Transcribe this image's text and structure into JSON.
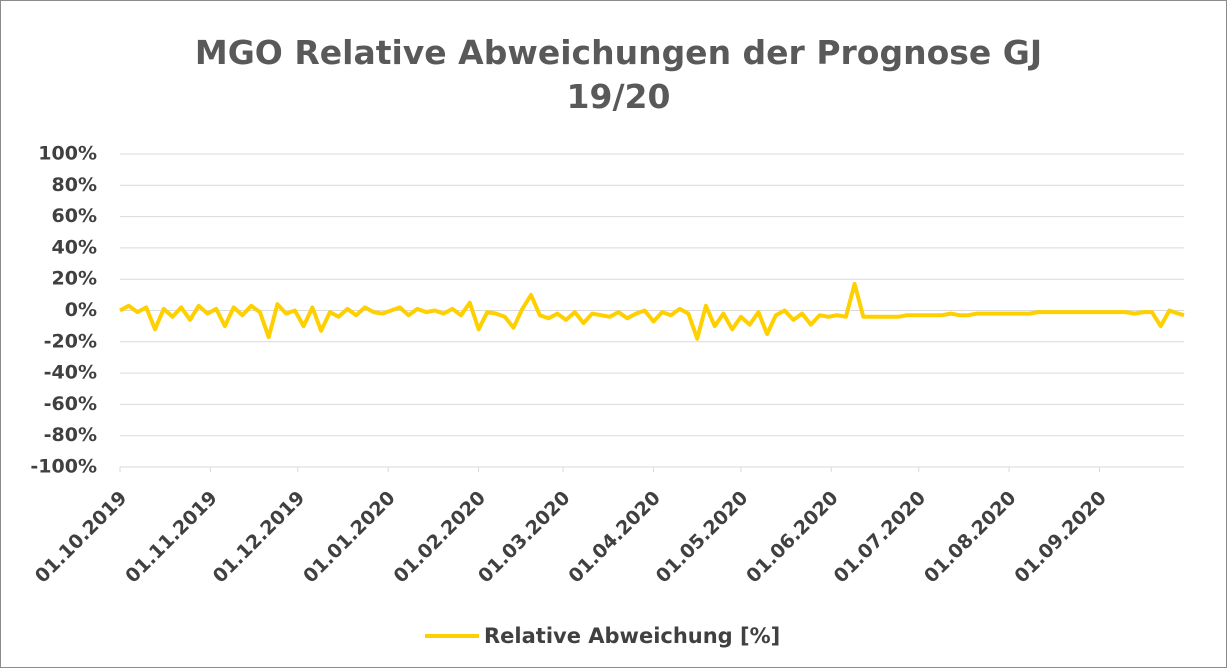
{
  "chart_data": {
    "type": "line",
    "title": "MGO Relative Abweichungen der Prognose GJ 19/20",
    "x": [
      "01.10.2019",
      "04.10.2019",
      "07.10.2019",
      "10.10.2019",
      "13.10.2019",
      "16.10.2019",
      "19.10.2019",
      "22.10.2019",
      "25.10.2019",
      "28.10.2019",
      "31.10.2019",
      "03.11.2019",
      "06.11.2019",
      "09.11.2019",
      "12.11.2019",
      "15.11.2019",
      "18.11.2019",
      "21.11.2019",
      "24.11.2019",
      "27.11.2019",
      "30.11.2019",
      "03.12.2019",
      "06.12.2019",
      "09.12.2019",
      "12.12.2019",
      "15.12.2019",
      "18.12.2019",
      "21.12.2019",
      "24.12.2019",
      "27.12.2019",
      "30.12.2019",
      "02.01.2020",
      "05.01.2020",
      "08.01.2020",
      "11.01.2020",
      "14.01.2020",
      "17.01.2020",
      "20.01.2020",
      "23.01.2020",
      "26.01.2020",
      "29.01.2020",
      "01.02.2020",
      "04.02.2020",
      "07.02.2020",
      "10.02.2020",
      "13.02.2020",
      "16.02.2020",
      "19.02.2020",
      "22.02.2020",
      "25.02.2020",
      "28.02.2020",
      "02.03.2020",
      "05.03.2020",
      "08.03.2020",
      "11.03.2020",
      "14.03.2020",
      "17.03.2020",
      "20.03.2020",
      "23.03.2020",
      "26.03.2020",
      "29.03.2020",
      "01.04.2020",
      "04.04.2020",
      "07.04.2020",
      "10.04.2020",
      "13.04.2020",
      "16.04.2020",
      "19.04.2020",
      "22.04.2020",
      "25.04.2020",
      "28.04.2020",
      "01.05.2020",
      "04.05.2020",
      "07.05.2020",
      "10.05.2020",
      "13.05.2020",
      "16.05.2020",
      "19.05.2020",
      "22.05.2020",
      "25.05.2020",
      "28.05.2020",
      "31.05.2020",
      "03.06.2020",
      "06.06.2020",
      "09.06.2020",
      "12.06.2020",
      "15.06.2020",
      "18.06.2020",
      "21.06.2020",
      "24.06.2020",
      "27.06.2020",
      "30.06.2020",
      "03.07.2020",
      "06.07.2020",
      "09.07.2020",
      "12.07.2020",
      "15.07.2020",
      "18.07.2020",
      "21.07.2020",
      "24.07.2020",
      "27.07.2020",
      "30.07.2020",
      "02.08.2020",
      "05.08.2020",
      "08.08.2020",
      "11.08.2020",
      "14.08.2020",
      "17.08.2020",
      "20.08.2020",
      "23.08.2020",
      "26.08.2020",
      "29.08.2020",
      "01.09.2020",
      "04.09.2020",
      "07.09.2020",
      "10.09.2020",
      "13.09.2020",
      "16.09.2020",
      "19.09.2020",
      "22.09.2020",
      "25.09.2020",
      "28.09.2020",
      "30.09.2020"
    ],
    "series": [
      {
        "name": "Relative Abweichung [%]",
        "color": "#ffd000",
        "values": [
          0,
          3,
          -1,
          2,
          -12,
          1,
          -4,
          2,
          -6,
          3,
          -2,
          1,
          -10,
          2,
          -3,
          3,
          -1,
          -17,
          4,
          -2,
          0,
          -10,
          2,
          -13,
          -1,
          -4,
          1,
          -3,
          2,
          -1,
          -2,
          0,
          2,
          -3,
          1,
          -1,
          0,
          -2,
          1,
          -3,
          5,
          -12,
          -1,
          -2,
          -4,
          -11,
          1,
          10,
          -3,
          -5,
          -2,
          -6,
          -1,
          -8,
          -2,
          -3,
          -4,
          -1,
          -5,
          -2,
          0,
          -7,
          -1,
          -3,
          1,
          -2,
          -18,
          3,
          -10,
          -2,
          -12,
          -4,
          -9,
          -1,
          -15,
          -3,
          0,
          -6,
          -2,
          -9,
          -3,
          -4,
          -3,
          -4,
          17,
          -4,
          -4,
          -4,
          -4,
          -4,
          -3,
          -3,
          -3,
          -3,
          -3,
          -2,
          -3,
          -3,
          -2,
          -2,
          -2,
          -2,
          -2,
          -2,
          -2,
          -1,
          -1,
          -1,
          -1,
          -1,
          -1,
          -1,
          -1,
          -1,
          -1,
          -1,
          -2,
          -1,
          -1,
          -10,
          0,
          -2,
          -3
        ]
      }
    ],
    "xlim": [
      "01.10.2019",
      "30.09.2020"
    ],
    "xticks": [
      "01.10.2019",
      "01.11.2019",
      "01.12.2019",
      "01.01.2020",
      "01.02.2020",
      "01.03.2020",
      "01.04.2020",
      "01.05.2020",
      "01.06.2020",
      "01.07.2020",
      "01.08.2020",
      "01.09.2020"
    ],
    "ylim": [
      -100,
      100
    ],
    "yticks": [
      {
        "value": -100,
        "label": "-100%"
      },
      {
        "value": -80,
        "label": "-80%"
      },
      {
        "value": -60,
        "label": "-60%"
      },
      {
        "value": -40,
        "label": "-40%"
      },
      {
        "value": -20,
        "label": "-20%"
      },
      {
        "value": 0,
        "label": "0%"
      },
      {
        "value": 20,
        "label": "20%"
      },
      {
        "value": 40,
        "label": "40%"
      },
      {
        "value": 60,
        "label": "60%"
      },
      {
        "value": 80,
        "label": "80%"
      },
      {
        "value": 100,
        "label": "100%"
      }
    ],
    "grid": true,
    "legend": "bottom"
  }
}
